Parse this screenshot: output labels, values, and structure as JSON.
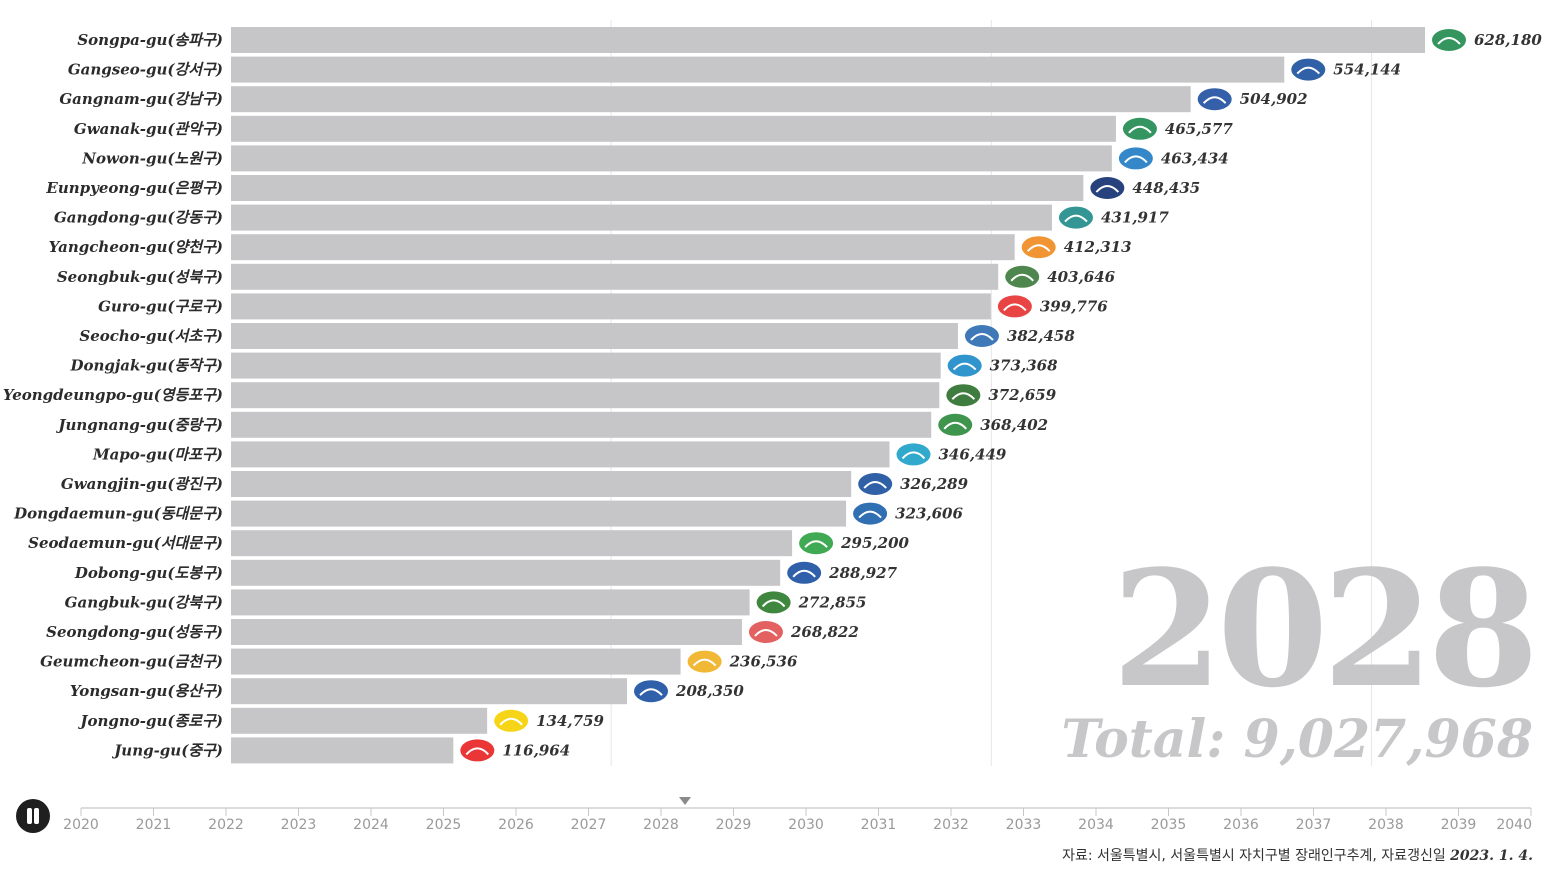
{
  "chart_data": {
    "type": "bar",
    "orientation": "horizontal",
    "year": "2028",
    "total_label": "Total: 9,027,968",
    "xlim": [
      0,
      650000
    ],
    "categories": [
      "Songpa-gu(송파구)",
      "Gangseo-gu(강서구)",
      "Gangnam-gu(강남구)",
      "Gwanak-gu(관악구)",
      "Nowon-gu(노원구)",
      "Eunpyeong-gu(은평구)",
      "Gangdong-gu(강동구)",
      "Yangcheon-gu(양천구)",
      "Seongbuk-gu(성북구)",
      "Guro-gu(구로구)",
      "Seocho-gu(서초구)",
      "Dongjak-gu(동작구)",
      "Yeongdeungpo-gu(영등포구)",
      "Jungnang-gu(중랑구)",
      "Mapo-gu(마포구)",
      "Gwangjin-gu(광진구)",
      "Dongdaemun-gu(동대문구)",
      "Seodaemun-gu(서대문구)",
      "Dobong-gu(도봉구)",
      "Gangbuk-gu(강북구)",
      "Seongdong-gu(성동구)",
      "Geumcheon-gu(금천구)",
      "Yongsan-gu(용산구)",
      "Jongno-gu(종로구)",
      "Jung-gu(중구)"
    ],
    "values": [
      628180,
      554144,
      504902,
      465577,
      463434,
      448435,
      431917,
      412313,
      403646,
      399776,
      382458,
      373368,
      372659,
      368402,
      346449,
      326289,
      323606,
      295200,
      288927,
      272855,
      268822,
      236536,
      208350,
      134759,
      116964
    ],
    "value_labels": [
      "628,180",
      "554,144",
      "504,902",
      "465,577",
      "463,434",
      "448,435",
      "431,917",
      "412,313",
      "403,646",
      "399,776",
      "382,458",
      "373,368",
      "372,659",
      "368,402",
      "346,449",
      "326,289",
      "323,606",
      "295,200",
      "288,927",
      "272,855",
      "268,822",
      "236,536",
      "208,350",
      "134,759",
      "116,964"
    ],
    "logo_colors": [
      "#1f8a4c",
      "#1a4f9c",
      "#1e4fa0",
      "#1e8a50",
      "#1e7bc4",
      "#0f2d6e",
      "#1e8a8a",
      "#f08a1e",
      "#3a7a3a",
      "#e53030",
      "#2a6ab0",
      "#1a8ac8",
      "#2a6e2a",
      "#2a8a3a",
      "#1aa0c8",
      "#1a4f9c",
      "#1a5fa8",
      "#2aa040",
      "#1a4fa0",
      "#2a7a2a",
      "#e05050",
      "#f0b020",
      "#1a4fa0",
      "#f5d000",
      "#e82020"
    ],
    "timeline": {
      "years": [
        "2020",
        "2021",
        "2022",
        "2023",
        "2024",
        "2025",
        "2026",
        "2027",
        "2028",
        "2029",
        "2030",
        "2031",
        "2032",
        "2033",
        "2034",
        "2035",
        "2036",
        "2037",
        "2038",
        "2039",
        "2040"
      ],
      "current": "2028"
    },
    "colors": {
      "bar": "#c6c6c9",
      "grid": "#e6e6e6",
      "watermark": "#c7c7c9"
    }
  },
  "footer": {
    "source_text": "자료: 서울특별시, 서울특별시 자치구별 장래인구추계, 자료갱신일",
    "source_date": "2023. 1. 4."
  }
}
